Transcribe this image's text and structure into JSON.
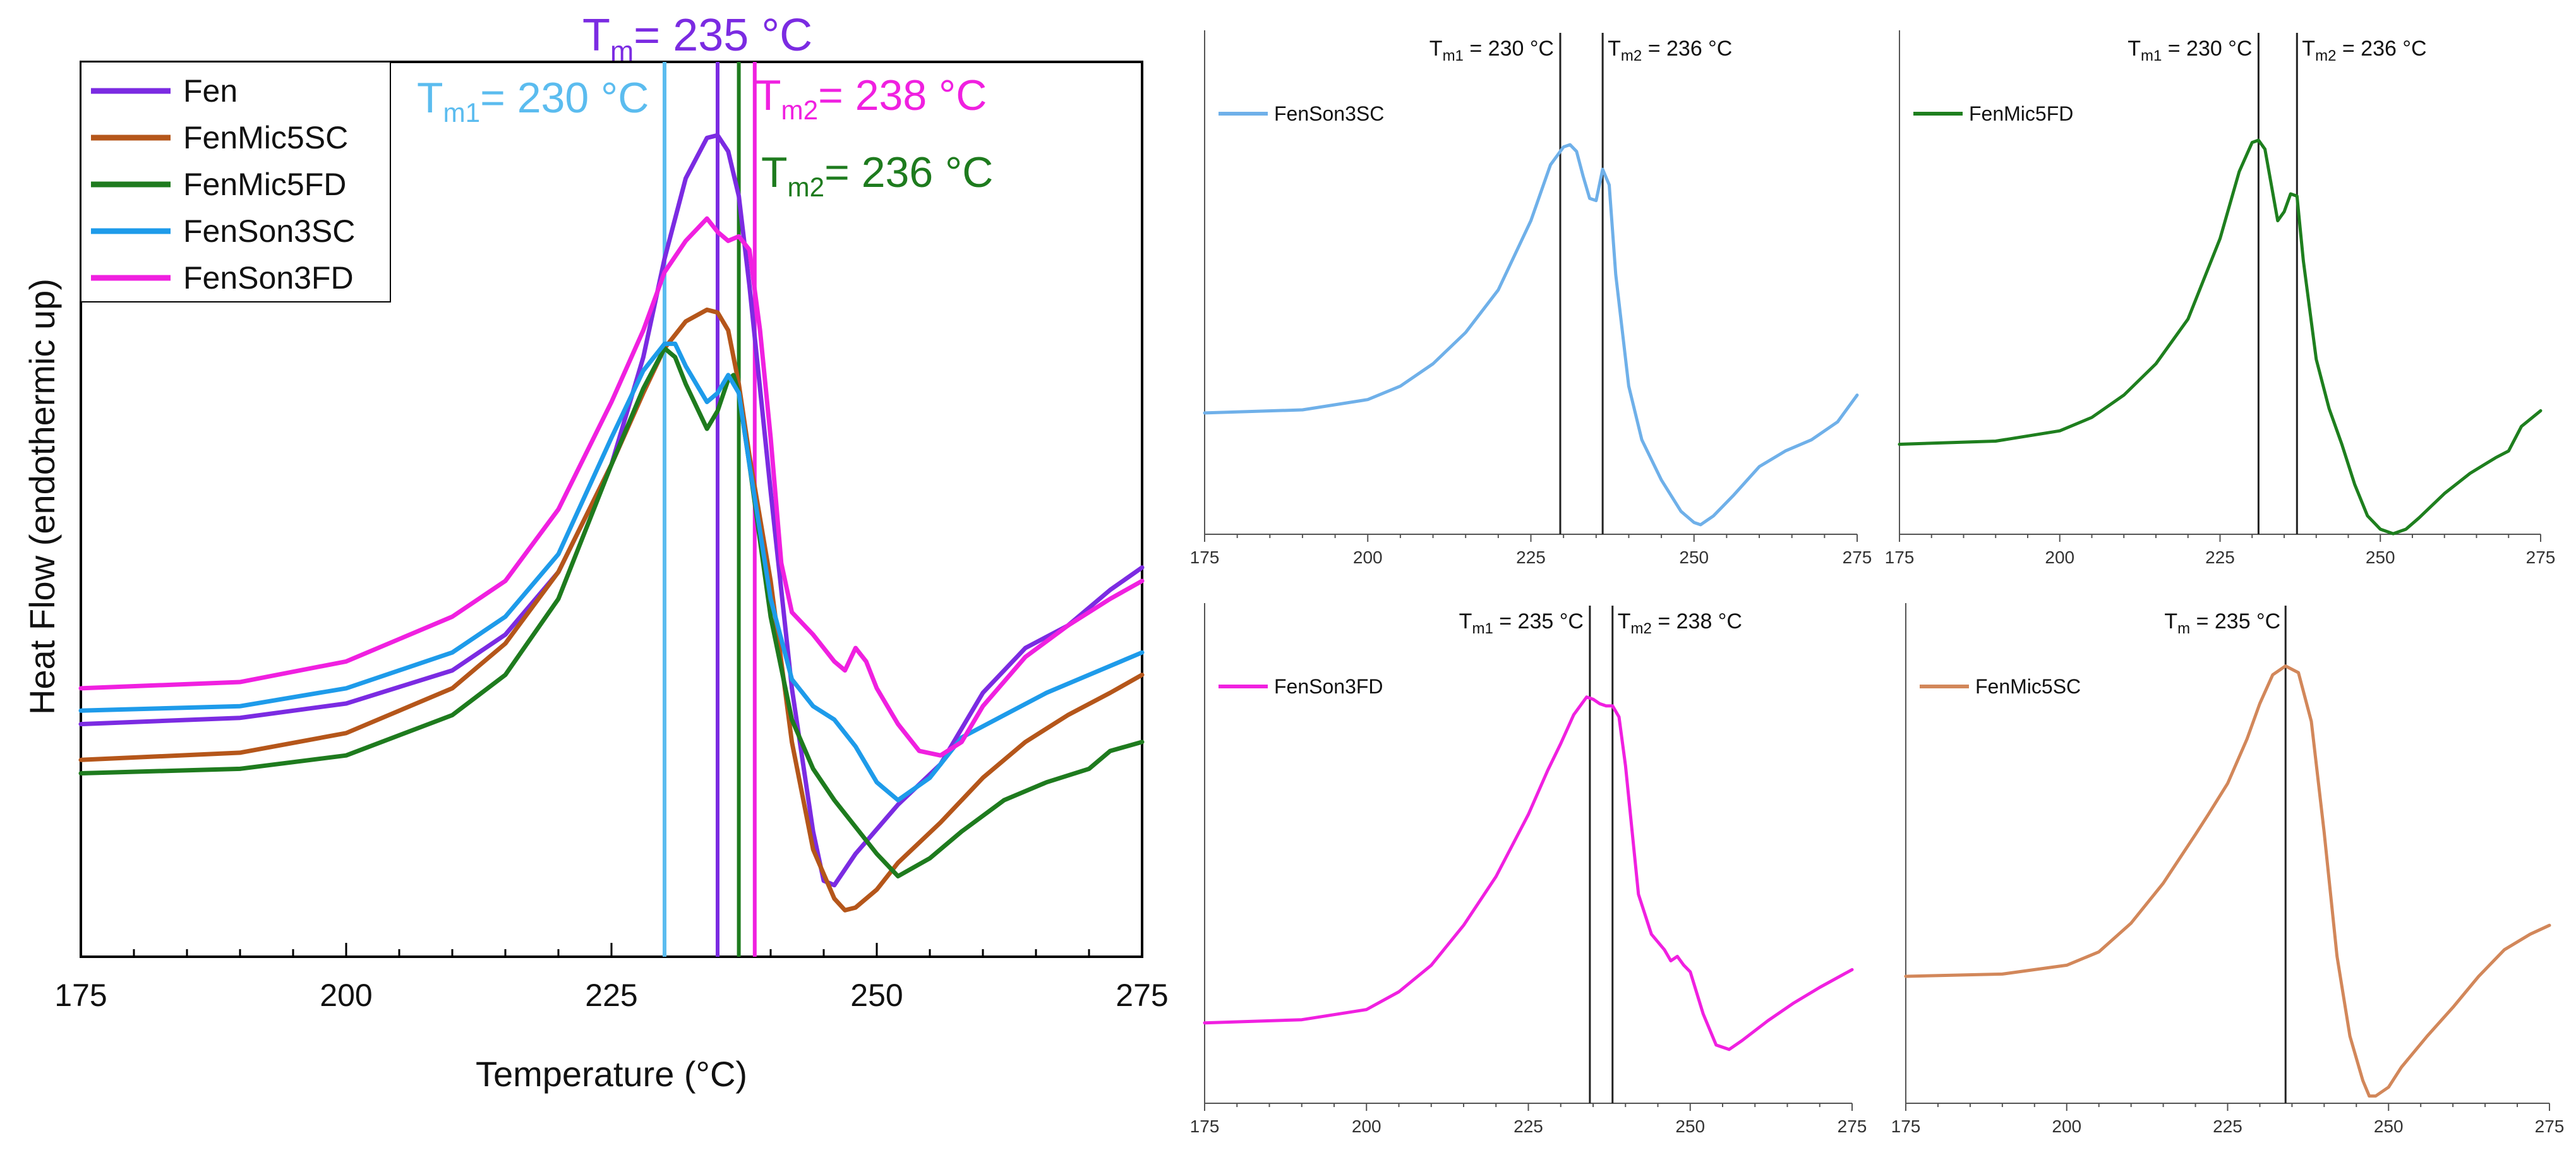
{
  "chart_data": [
    {
      "id": "main",
      "type": "line",
      "xlabel": "Temperature (°C)",
      "ylabel": "Heat Flow (endothermic up)",
      "xlim": [
        175,
        275
      ],
      "xticks": [
        175,
        200,
        225,
        250,
        275
      ],
      "ylim": [
        0,
        100
      ],
      "grid": false,
      "legend_position": "top-left",
      "series": [
        {
          "name": "Fen",
          "color": "#7B2BE2",
          "x": [
            175,
            190,
            200,
            210,
            215,
            220,
            225,
            228,
            230,
            232,
            234,
            235,
            236,
            237,
            238,
            240,
            242,
            244,
            245,
            246,
            248,
            252,
            256,
            260,
            264,
            268,
            272,
            275
          ],
          "y": [
            26,
            26.7,
            28.3,
            32,
            36,
            43,
            55,
            67,
            78,
            87,
            91.5,
            91.8,
            90,
            85,
            75,
            52,
            30,
            14,
            8.5,
            8,
            11.5,
            17,
            21.5,
            29.5,
            34.5,
            37,
            41,
            43.5
          ]
        },
        {
          "name": "FenMic5SC",
          "color": "#B5561A",
          "x": [
            175,
            190,
            200,
            210,
            215,
            220,
            225,
            228,
            230,
            232,
            234,
            235,
            236,
            237,
            238,
            240,
            242,
            244,
            246,
            247,
            248,
            250,
            252,
            256,
            260,
            264,
            268,
            272,
            275
          ],
          "y": [
            22,
            22.8,
            25,
            30,
            35,
            43,
            55,
            63,
            68,
            71,
            72.3,
            72,
            70,
            64,
            56,
            42,
            24,
            12,
            6.5,
            5.2,
            5.5,
            7.5,
            10.5,
            15,
            20,
            24,
            27,
            29.5,
            31.5
          ]
        },
        {
          "name": "FenMic5FD",
          "color": "#1E7B1E",
          "x": [
            175,
            190,
            200,
            210,
            215,
            220,
            225,
            228,
            230,
            231,
            232,
            234,
            235,
            236,
            236.5,
            237,
            238,
            240,
            242,
            244,
            246,
            248,
            250,
            252,
            255,
            258,
            262,
            266,
            270,
            272,
            275
          ],
          "y": [
            20.5,
            21,
            22.5,
            27,
            31.5,
            40,
            55,
            63.5,
            68,
            67,
            64,
            59,
            61,
            64.5,
            65,
            63,
            55,
            38,
            26.5,
            21,
            17.5,
            14.5,
            11.5,
            9,
            11,
            14,
            17.5,
            19.5,
            21,
            23,
            24
          ]
        },
        {
          "name": "FenSon3SC",
          "color": "#1E9BEA",
          "x": [
            175,
            190,
            200,
            210,
            215,
            220,
            225,
            228,
            230,
            231,
            232,
            234,
            235,
            236,
            237,
            238,
            240,
            242,
            244,
            246,
            248,
            250,
            252,
            255,
            258,
            262,
            266,
            270,
            275
          ],
          "y": [
            27.5,
            28,
            30,
            34,
            38,
            45,
            58,
            65.5,
            68.5,
            68.5,
            66,
            62,
            63,
            65,
            63,
            55,
            40,
            31,
            28,
            26.5,
            23.5,
            19.5,
            17.5,
            20,
            24.5,
            27,
            29.5,
            31.5,
            34
          ]
        },
        {
          "name": "FenSon3FD",
          "color": "#F020E0",
          "x": [
            175,
            190,
            200,
            210,
            215,
            220,
            225,
            228,
            230,
            232,
            234,
            235,
            236,
            237,
            238,
            239,
            240,
            241,
            242,
            244,
            246,
            247,
            248,
            249,
            250,
            252,
            254,
            256,
            258,
            260,
            264,
            268,
            272,
            275
          ],
          "y": [
            30,
            30.7,
            33,
            38,
            42,
            50,
            62,
            70,
            76.5,
            80,
            82.5,
            81,
            80,
            80.5,
            79,
            70,
            58,
            44,
            38.5,
            36,
            33,
            32,
            34.5,
            33,
            30,
            26,
            23,
            22.5,
            24,
            28,
            33.5,
            37,
            40,
            42
          ]
        }
      ],
      "markers": [
        {
          "label_main": "T",
          "label_sub": "m",
          "label_value": "= 235 °C",
          "x": 235,
          "color": "#7B2BE2"
        },
        {
          "label_main": "T",
          "label_sub": "m1",
          "label_value": "= 230 °C",
          "x": 230,
          "color": "#5BBCEF"
        },
        {
          "label_main": "T",
          "label_sub": "m2",
          "label_value": "= 238 °C",
          "x": 238.5,
          "color": "#F020E0"
        },
        {
          "label_main": "T",
          "label_sub": "m2",
          "label_value": "= 236 °C",
          "x": 237,
          "color": "#1E7B1E"
        }
      ]
    },
    {
      "id": "p1",
      "type": "line",
      "legend": "FenSon3SC",
      "color": "#6FB0E9",
      "xlim": [
        175,
        275
      ],
      "xticks": [
        175,
        200,
        225,
        250,
        275
      ],
      "ylim": [
        0,
        100
      ],
      "x": [
        175,
        190,
        200,
        205,
        210,
        215,
        220,
        225,
        228,
        230,
        231,
        232,
        233,
        234,
        235,
        236,
        237,
        238,
        240,
        242,
        245,
        248,
        250,
        251,
        253,
        256,
        260,
        264,
        268,
        272,
        275
      ],
      "y": [
        26,
        26.7,
        29,
        32,
        37,
        44,
        53.5,
        69,
        81.5,
        85.5,
        86,
        84.5,
        79,
        74,
        73.5,
        80.5,
        77,
        57,
        32,
        20,
        11,
        4,
        1.5,
        1,
        3,
        7.5,
        14,
        17.5,
        20,
        24,
        30
      ],
      "markers": [
        {
          "label_main": "T",
          "label_sub": "m1",
          "label_value": " = 230 °C",
          "x": 229.5
        },
        {
          "label_main": "T",
          "label_sub": "m2",
          "label_value": " = 236 °C",
          "x": 236
        }
      ]
    },
    {
      "id": "p2",
      "type": "line",
      "legend": "FenMic5FD",
      "color": "#1E7F1E",
      "xlim": [
        175,
        275
      ],
      "xticks": [
        175,
        200,
        225,
        250,
        275
      ],
      "ylim": [
        0,
        100
      ],
      "x": [
        175,
        190,
        200,
        205,
        210,
        215,
        220,
        225,
        228,
        230,
        231,
        232,
        233,
        234,
        235,
        236,
        237,
        238,
        240,
        242,
        244,
        246,
        248,
        250,
        252,
        254,
        256,
        260,
        264,
        268,
        270,
        272,
        275
      ],
      "y": [
        19,
        19.7,
        22,
        25,
        30,
        37,
        47,
        65,
        80,
        86.5,
        87,
        85,
        77,
        69,
        71,
        75,
        74.5,
        60,
        38,
        27,
        19,
        10,
        3,
        0,
        -1,
        0,
        2.5,
        8,
        12.5,
        16,
        17.5,
        23,
        26.5
      ],
      "markers": [
        {
          "label_main": "T",
          "label_sub": "m1",
          "label_value": " = 230 °C",
          "x": 231
        },
        {
          "label_main": "T",
          "label_sub": "m2",
          "label_value": " = 236 °C",
          "x": 237
        }
      ]
    },
    {
      "id": "p3",
      "type": "line",
      "legend": "FenSon3FD",
      "color": "#F020E0",
      "xlim": [
        175,
        275
      ],
      "xticks": [
        175,
        200,
        225,
        250,
        275
      ],
      "ylim": [
        0,
        100
      ],
      "x": [
        175,
        190,
        200,
        205,
        210,
        215,
        220,
        225,
        228,
        230,
        232,
        234,
        235,
        236,
        237,
        238,
        239,
        240,
        242,
        244,
        246,
        247,
        248,
        249,
        250,
        252,
        254,
        256,
        258,
        262,
        266,
        270,
        275
      ],
      "y": [
        17,
        17.7,
        20,
        24,
        30,
        39,
        50,
        64,
        74,
        80,
        86.5,
        90.5,
        90,
        89,
        88.5,
        88.5,
        86,
        75,
        46,
        37,
        33.5,
        31,
        32,
        30,
        28.5,
        19,
        12,
        11,
        13,
        17.5,
        21.5,
        25,
        29
      ],
      "markers": [
        {
          "label_main": "T",
          "label_sub": "m1",
          "label_value": " = 235 °C",
          "x": 234.5
        },
        {
          "label_main": "T",
          "label_sub": "m2",
          "label_value": " = 238 °C",
          "x": 238
        }
      ]
    },
    {
      "id": "p4",
      "type": "line",
      "legend": "FenMic5SC",
      "color": "#D2875A",
      "xlim": [
        175,
        275
      ],
      "xticks": [
        175,
        200,
        225,
        250,
        275
      ],
      "ylim": [
        0,
        100
      ],
      "x": [
        175,
        190,
        200,
        205,
        210,
        215,
        220,
        222,
        225,
        228,
        230,
        232,
        234,
        236,
        238,
        240,
        242,
        244,
        246,
        247,
        248,
        250,
        252,
        256,
        260,
        264,
        268,
        272,
        275
      ],
      "y": [
        27.5,
        28,
        30,
        33,
        39.5,
        48.5,
        59.5,
        64,
        71,
        81,
        89,
        95.5,
        97.5,
        96,
        85,
        60,
        32,
        14,
        4,
        0.5,
        0.5,
        2.5,
        7,
        14,
        20.5,
        27.5,
        33.5,
        37,
        39
      ],
      "markers": [
        {
          "label_main": "T",
          "label_sub": "m",
          "label_value": " = 235 °C",
          "x": 234
        }
      ]
    }
  ]
}
